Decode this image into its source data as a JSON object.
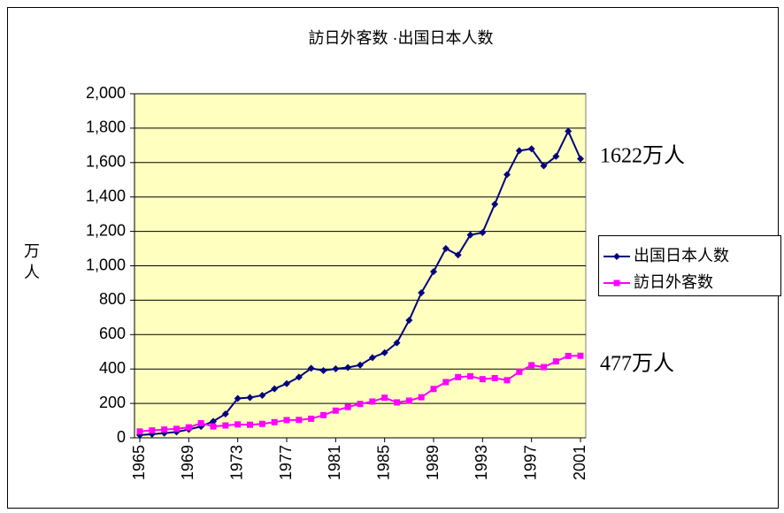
{
  "chart_data": {
    "type": "line",
    "title": "訪日外客数 ·出国日本人数",
    "y_label": "万人",
    "x": [
      1965,
      1966,
      1967,
      1968,
      1969,
      1970,
      1971,
      1972,
      1973,
      1974,
      1975,
      1976,
      1977,
      1978,
      1979,
      1980,
      1981,
      1982,
      1983,
      1984,
      1985,
      1986,
      1987,
      1988,
      1989,
      1990,
      1991,
      1992,
      1993,
      1994,
      1995,
      1996,
      1997,
      1998,
      1999,
      2000,
      2001
    ],
    "xlim": [
      1965,
      2001
    ],
    "xticks": [
      1965,
      1969,
      1973,
      1977,
      1981,
      1985,
      1989,
      1993,
      1997,
      2001
    ],
    "ylim": [
      0,
      2000
    ],
    "yticks": [
      0,
      200,
      400,
      600,
      800,
      {
        "value": 1000,
        "label": "1,000"
      },
      {
        "value": 1200,
        "label": "1,200"
      },
      {
        "value": 1400,
        "label": "1,400"
      },
      {
        "value": 1600,
        "label": "1,600"
      },
      {
        "value": 1800,
        "label": "1,800"
      },
      {
        "value": 2000,
        "label": "2,000"
      }
    ],
    "grid": true,
    "legend": "right",
    "series": [
      {
        "name": "出国日本人数",
        "color": "#000080",
        "marker": "diamond",
        "values": [
          16,
          21,
          27,
          34,
          49,
          66,
          96,
          139,
          229,
          234,
          247,
          285,
          315,
          353,
          404,
          391,
          401,
          409,
          423,
          466,
          495,
          552,
          683,
          843,
          966,
          1100,
          1063,
          1179,
          1193,
          1358,
          1530,
          1669,
          1680,
          1581,
          1636,
          1782,
          1622
        ]
      },
      {
        "name": "訪日外客数",
        "color": "#FF00FF",
        "marker": "square",
        "values": [
          37,
          43,
          48,
          52,
          61,
          85,
          66,
          72,
          78,
          76,
          81,
          91,
          103,
          104,
          111,
          132,
          158,
          179,
          197,
          211,
          233,
          206,
          216,
          236,
          284,
          324,
          353,
          358,
          341,
          347,
          335,
          384,
          422,
          411,
          444,
          476,
          477
        ]
      }
    ],
    "annotations": [
      "1622万人",
      "477万人"
    ]
  }
}
